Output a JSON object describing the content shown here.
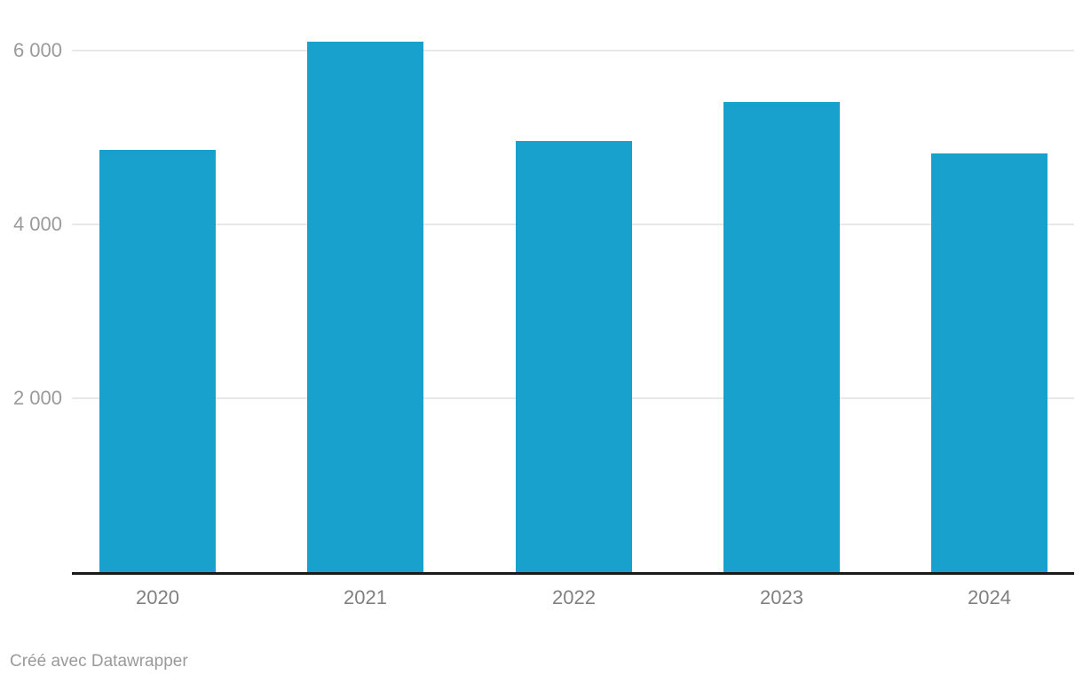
{
  "chart_data": {
    "type": "bar",
    "categories": [
      "2020",
      "2021",
      "2022",
      "2023",
      "2024"
    ],
    "values": [
      4860,
      6105,
      4955,
      5410,
      4815
    ],
    "title": "",
    "xlabel": "",
    "ylabel": "",
    "ylim": [
      0,
      6580
    ],
    "yticks": [
      {
        "value": 2000,
        "label": "2 000"
      },
      {
        "value": 4000,
        "label": "4 000"
      },
      {
        "value": 6000,
        "label": "6 000"
      }
    ],
    "grid": "horizontal",
    "legend_position": "none",
    "bar_color": "#18a1cd"
  },
  "footer": {
    "attribution": "Créé avec Datawrapper"
  },
  "colors": {
    "bar": "#18a1cd",
    "gridline": "#e8e8e8",
    "axis_line": "#1a1a1a",
    "y_tick_text": "#9a9a9a",
    "x_tick_text": "#808080",
    "footer_text": "#9a9a9a",
    "background": "#ffffff"
  }
}
